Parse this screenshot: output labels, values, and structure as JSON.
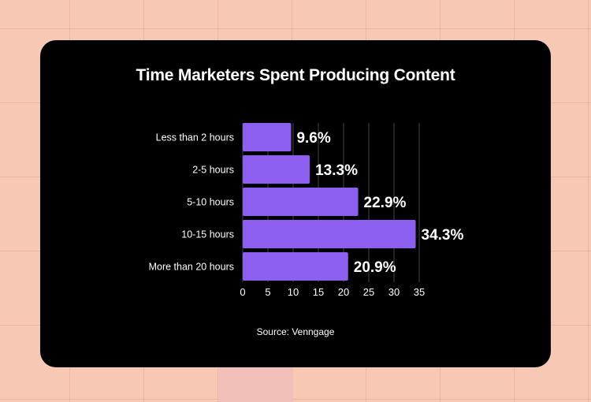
{
  "chart_data": {
    "type": "bar",
    "orientation": "horizontal",
    "title": "Time Marketers Spent Producing Content",
    "categories": [
      "Less than 2 hours",
      "2-5 hours",
      "5-10 hours",
      "10-15 hours",
      "More than 20 hours"
    ],
    "values": [
      9.6,
      13.3,
      22.9,
      34.3,
      20.9
    ],
    "value_labels": [
      "9.6%",
      "13.3%",
      "22.9%",
      "34.3%",
      "20.9%"
    ],
    "xlim": [
      0,
      35
    ],
    "xticks": [
      "0",
      "5",
      "10",
      "15",
      "20",
      "25",
      "30",
      "35"
    ],
    "grid": true,
    "bar_color": "#8c5ff0",
    "source": "Source: Venngage"
  },
  "colors": {
    "background": "#f7c8b3",
    "card": "#000000",
    "text": "#ffffff",
    "gridline": "#444444"
  }
}
